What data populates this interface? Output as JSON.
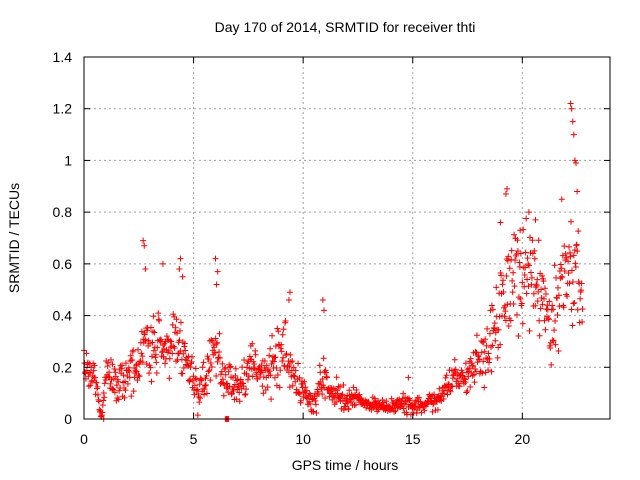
{
  "chart_data": {
    "type": "scatter",
    "title": "Day 170 of 2014, SRMTID for receiver thti",
    "xlabel": "GPS time / hours",
    "ylabel": "SRMTID / TECUs",
    "xlim": [
      0,
      24
    ],
    "ylim": [
      0,
      1.4
    ],
    "xticks": [
      0,
      5,
      10,
      15,
      20
    ],
    "yticks": [
      0,
      0.2,
      0.4,
      0.6,
      0.8,
      1,
      1.2,
      1.4
    ],
    "xtick_labels": [
      "0",
      "5",
      "10",
      "15",
      "20"
    ],
    "ytick_labels": [
      "0",
      "0.2",
      "0.4",
      "0.6",
      "0.8",
      "1",
      "1.2",
      "1.4"
    ],
    "grid": true,
    "marker": "+",
    "color": "#ff0000",
    "series": [
      {
        "name": "SRMTID",
        "trend": [
          [
            0.0,
            0.2,
            0.05
          ],
          [
            0.5,
            0.16,
            0.05
          ],
          [
            0.8,
            0.0,
            0.0
          ],
          [
            1.0,
            0.18,
            0.05
          ],
          [
            1.5,
            0.12,
            0.06
          ],
          [
            2.0,
            0.18,
            0.06
          ],
          [
            2.5,
            0.2,
            0.07
          ],
          [
            2.8,
            0.3,
            0.12
          ],
          [
            3.2,
            0.26,
            0.1
          ],
          [
            3.5,
            0.3,
            0.1
          ],
          [
            3.9,
            0.27,
            0.09
          ],
          [
            4.3,
            0.3,
            0.12
          ],
          [
            4.8,
            0.2,
            0.08
          ],
          [
            5.2,
            0.1,
            0.06
          ],
          [
            5.6,
            0.18,
            0.08
          ],
          [
            6.0,
            0.3,
            0.12
          ],
          [
            6.4,
            0.15,
            0.08
          ],
          [
            6.8,
            0.14,
            0.06
          ],
          [
            7.3,
            0.17,
            0.08
          ],
          [
            7.8,
            0.2,
            0.08
          ],
          [
            8.3,
            0.14,
            0.06
          ],
          [
            8.8,
            0.22,
            0.1
          ],
          [
            9.2,
            0.28,
            0.1
          ],
          [
            9.6,
            0.15,
            0.06
          ],
          [
            10.0,
            0.12,
            0.05
          ],
          [
            10.5,
            0.05,
            0.03
          ],
          [
            10.9,
            0.16,
            0.08
          ],
          [
            11.3,
            0.1,
            0.05
          ],
          [
            12.0,
            0.08,
            0.04
          ],
          [
            12.5,
            0.07,
            0.03
          ],
          [
            13.0,
            0.06,
            0.02
          ],
          [
            13.5,
            0.05,
            0.02
          ],
          [
            14.0,
            0.05,
            0.02
          ],
          [
            14.5,
            0.06,
            0.03
          ],
          [
            15.0,
            0.06,
            0.03
          ],
          [
            15.5,
            0.05,
            0.02
          ],
          [
            16.0,
            0.08,
            0.04
          ],
          [
            16.5,
            0.12,
            0.05
          ],
          [
            17.0,
            0.16,
            0.06
          ],
          [
            17.5,
            0.16,
            0.06
          ],
          [
            18.0,
            0.22,
            0.08
          ],
          [
            18.5,
            0.3,
            0.1
          ],
          [
            19.0,
            0.45,
            0.15
          ],
          [
            19.5,
            0.55,
            0.15
          ],
          [
            20.0,
            0.55,
            0.15
          ],
          [
            20.5,
            0.55,
            0.15
          ],
          [
            21.0,
            0.45,
            0.15
          ],
          [
            21.5,
            0.4,
            0.15
          ],
          [
            22.0,
            0.55,
            0.18
          ],
          [
            22.5,
            0.6,
            0.2
          ],
          [
            22.7,
            0.45,
            0.1
          ]
        ],
        "spikes": [
          [
            2.7,
            0.69
          ],
          [
            2.75,
            0.67
          ],
          [
            2.8,
            0.58
          ],
          [
            3.6,
            0.6
          ],
          [
            4.4,
            0.62
          ],
          [
            4.35,
            0.58
          ],
          [
            4.5,
            0.55
          ],
          [
            6.0,
            0.62
          ],
          [
            6.1,
            0.57
          ],
          [
            6.05,
            0.52
          ],
          [
            9.4,
            0.49
          ],
          [
            9.35,
            0.46
          ],
          [
            10.9,
            0.46
          ],
          [
            10.95,
            0.42
          ],
          [
            14.8,
            0.16
          ],
          [
            19.3,
            0.89
          ],
          [
            19.25,
            0.87
          ],
          [
            20.3,
            0.8
          ],
          [
            20.6,
            0.77
          ],
          [
            22.2,
            1.22
          ],
          [
            22.25,
            1.2
          ],
          [
            22.3,
            1.15
          ],
          [
            22.35,
            1.1
          ],
          [
            22.4,
            1.0
          ],
          [
            22.45,
            0.99
          ],
          [
            22.5,
            0.88
          ],
          [
            19.0,
            0.76
          ],
          [
            19.9,
            0.73
          ],
          [
            21.8,
            0.85
          ]
        ],
        "zeros": [
          0.9,
          6.45,
          6.5,
          6.55,
          6.6
        ]
      }
    ]
  }
}
